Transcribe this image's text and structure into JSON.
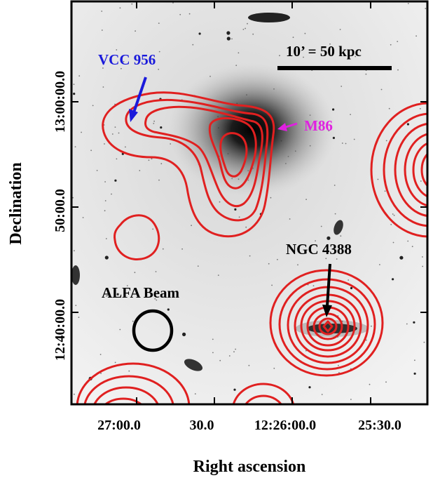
{
  "figure": {
    "xlabel": "Right ascension",
    "ylabel": "Declination",
    "xticks": [
      "27:00.0",
      "30.0",
      "12:26:00.0",
      "25:30.0"
    ],
    "yticks": [
      "13:00:00.0",
      "50:00.0",
      "12:40:00.0"
    ],
    "scale_bar_label": "10’ = 50 kpc",
    "annotations": {
      "vcc956": "VCC 956",
      "m86": "M86",
      "ngc4388": "NGC 4388",
      "beam": "ALFA Beam"
    },
    "colors": {
      "contour": "#e02020",
      "vcc956": "#1a1adb",
      "m86": "#e020e0",
      "text": "#000000",
      "background": "#ededed"
    }
  }
}
